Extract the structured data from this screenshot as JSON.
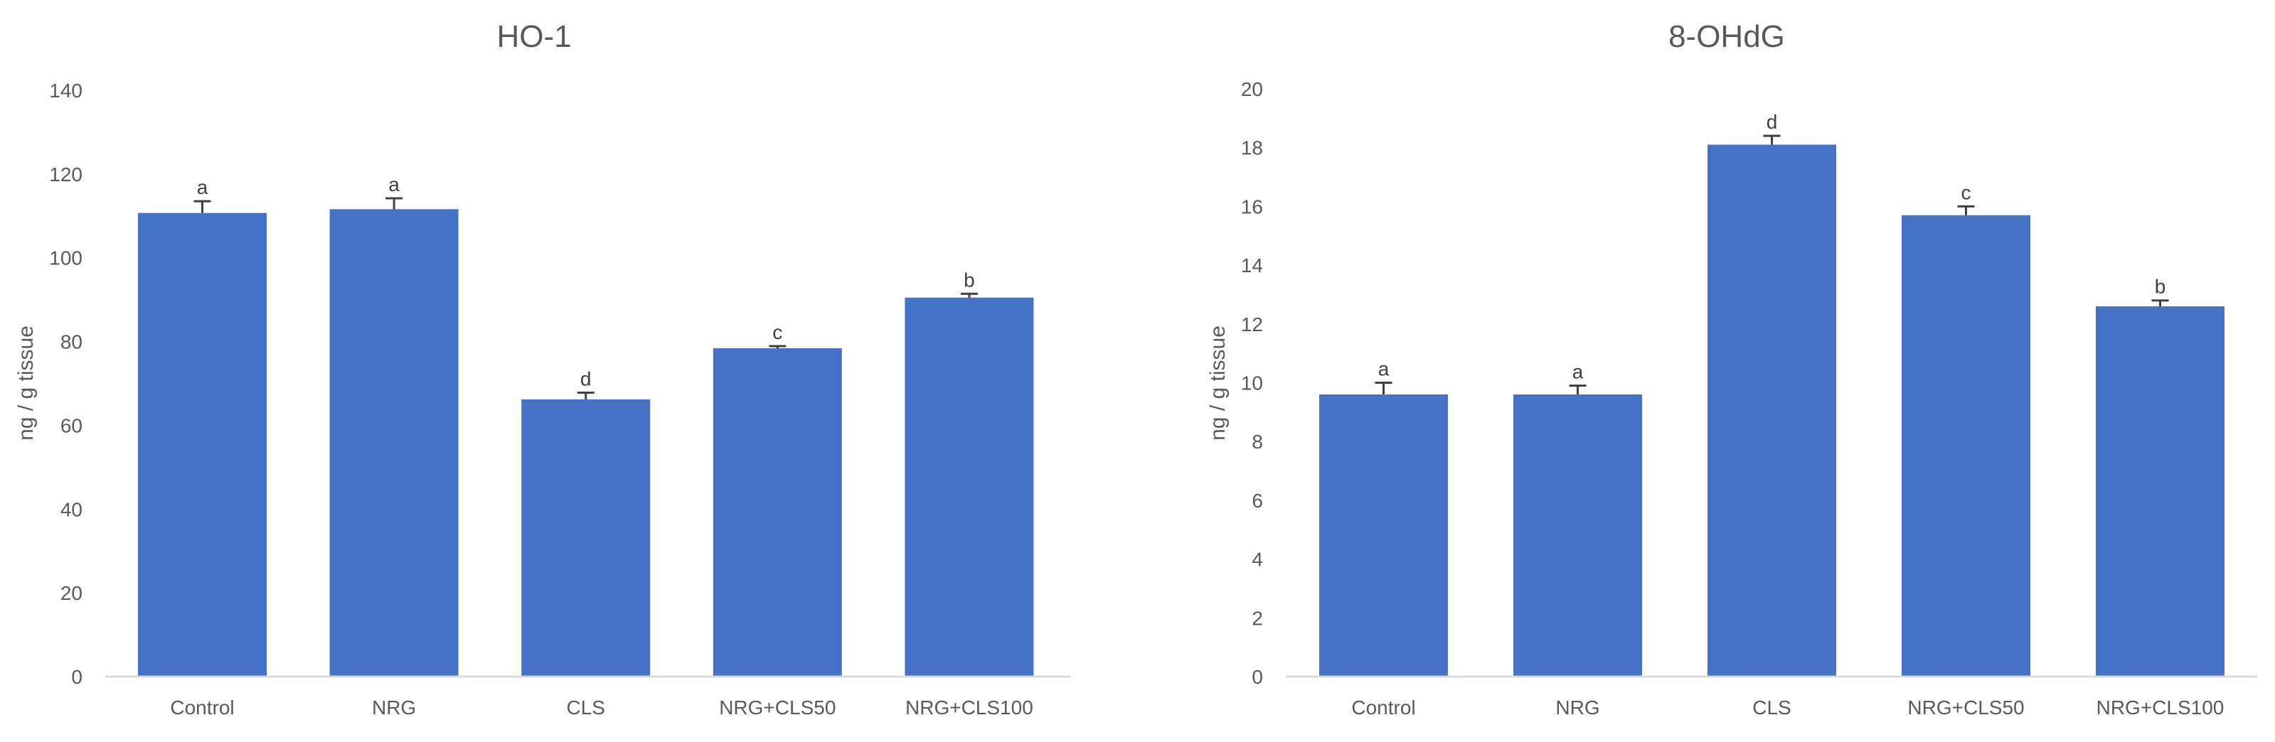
{
  "chart_data": [
    {
      "type": "bar",
      "title": "HO-1",
      "xlabel": "",
      "ylabel": "ng / g tissue",
      "categories": [
        "Control",
        "NRG",
        "CLS",
        "NRG+CLS50",
        "NRG+CLS100"
      ],
      "values": [
        110.7,
        111.6,
        66.2,
        78.4,
        90.5
      ],
      "error_upper": [
        113.5,
        114.2,
        67.8,
        78.9,
        91.4
      ],
      "significance_letters": [
        "a",
        "a",
        "d",
        "c",
        "b"
      ],
      "ylim": [
        0,
        140
      ],
      "yticks": [
        0,
        20,
        40,
        60,
        80,
        100,
        120,
        140
      ],
      "grid": false,
      "legend": null,
      "bar_color": "#4472C4"
    },
    {
      "type": "bar",
      "title": "8-OHdG",
      "xlabel": "",
      "ylabel": "ng / g tissue",
      "categories": [
        "Control",
        "NRG",
        "CLS",
        "NRG+CLS50",
        "NRG+CLS100"
      ],
      "values": [
        9.6,
        9.6,
        18.1,
        15.7,
        12.6
      ],
      "error_upper": [
        10.0,
        9.9,
        18.4,
        16.0,
        12.8
      ],
      "significance_letters": [
        "a",
        "a",
        "d",
        "c",
        "b"
      ],
      "ylim": [
        0,
        20
      ],
      "yticks": [
        0,
        2,
        4,
        6,
        8,
        10,
        12,
        14,
        16,
        18,
        20
      ],
      "grid": false,
      "legend": null,
      "bar_color": "#4472C4"
    }
  ],
  "colors": {
    "bar": "#4472C4",
    "axis": "#D9D9D9",
    "text": "#595959",
    "error_bar": "#404040"
  }
}
